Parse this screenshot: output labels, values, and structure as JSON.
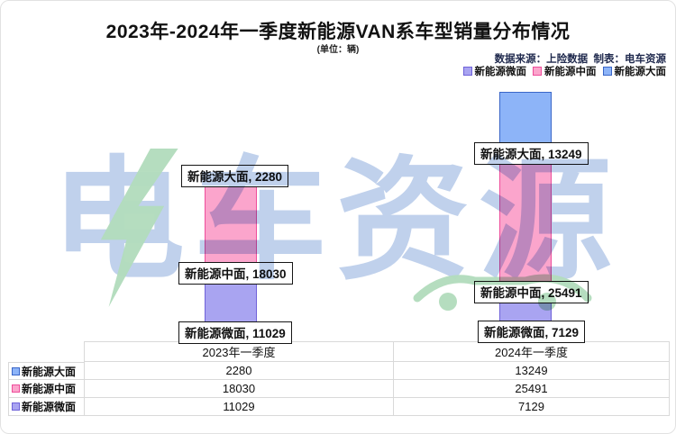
{
  "chart_data": {
    "type": "bar",
    "stacked": true,
    "title": "2023年-2024年一季度新能源VAN系车型销量分布情况",
    "unit_note": "(单位：辆)",
    "source_note": "数据来源：上险数据  制表：电车资源",
    "categories": [
      "2023年一季度",
      "2024年一季度"
    ],
    "series": [
      {
        "name": "新能源微面",
        "values": [
          11029,
          7129
        ],
        "fill": "#a9a4f1",
        "border": "#6f62d9"
      },
      {
        "name": "新能源中面",
        "values": [
          18030,
          25491
        ],
        "fill": "#fba5cc",
        "border": "#ee4d9b"
      },
      {
        "name": "新能源大面",
        "values": [
          2280,
          13249
        ],
        "fill": "#8db4f8",
        "border": "#3a66c8"
      }
    ],
    "legend_labels": [
      "新能源微面",
      "新能源中面",
      "新能源大面"
    ],
    "value_labels": [
      "新能源大面, 2280",
      "新能源中面, 18030",
      "新能源微面, 11029",
      "新能源大面, 13249",
      "新能源中面, 25491",
      "新能源微面, 7129"
    ],
    "ylim": [
      0,
      45869
    ],
    "grid": false,
    "legend_position": "top-right"
  },
  "table": {
    "columns": [
      "",
      "2023年一季度",
      "2024年一季度"
    ],
    "rows": [
      {
        "label": "新能源大面",
        "values": [
          "2280",
          "13249"
        ]
      },
      {
        "label": "新能源中面",
        "values": [
          "18030",
          "25491"
        ]
      },
      {
        "label": "新能源微面",
        "values": [
          "11029",
          "7129"
        ]
      }
    ]
  },
  "watermark": {
    "text": "电车资源",
    "blue": "#bacdea",
    "green": "#b2dcbc"
  }
}
